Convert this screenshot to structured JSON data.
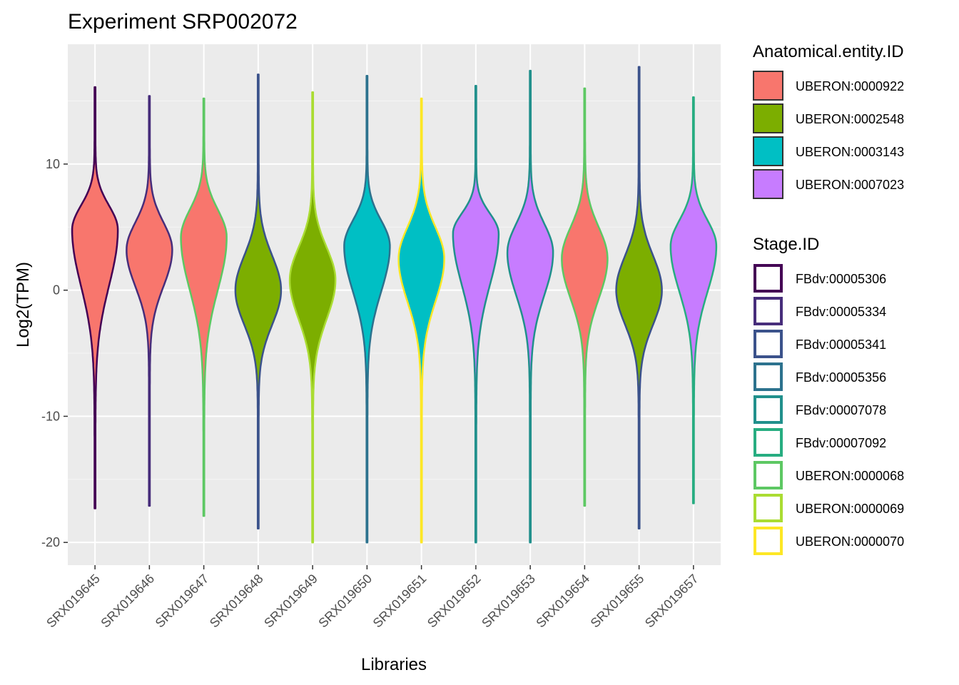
{
  "chart_data": {
    "type": "violin",
    "title": "Experiment SRP002072",
    "xlabel": "Libraries",
    "ylabel": "Log2(TPM)",
    "ylim": [
      -21.8,
      19.5
    ],
    "yticks": [
      -20,
      -10,
      0,
      10
    ],
    "ytick_labels": [
      "-20",
      "-10",
      "0",
      "10"
    ],
    "categories": [
      "SRX019645",
      "SRX019646",
      "SRX019647",
      "SRX019648",
      "SRX019649",
      "SRX019650",
      "SRX019651",
      "SRX019652",
      "SRX019653",
      "SRX019654",
      "SRX019655",
      "SRX019657"
    ],
    "violins": [
      {
        "library": "SRX019645",
        "anatomical": "UBERON:0000922",
        "stage": "FBdv:00005306",
        "min": -17.3,
        "max": 16.1,
        "mode": 4.8,
        "q_low": -5.0,
        "q_high": 9.0
      },
      {
        "library": "SRX019646",
        "anatomical": "UBERON:0000922",
        "stage": "FBdv:00005334",
        "min": -17.1,
        "max": 15.4,
        "mode": 3.2,
        "q_low": -3.2,
        "q_high": 8.0
      },
      {
        "library": "SRX019647",
        "anatomical": "UBERON:0000922",
        "stage": "UBERON:0000068",
        "min": -17.9,
        "max": 15.2,
        "mode": 4.2,
        "q_low": -5.0,
        "q_high": 9.0
      },
      {
        "library": "SRX019648",
        "anatomical": "UBERON:0002548",
        "stage": "FBdv:00005341",
        "min": -18.9,
        "max": 17.1,
        "mode": 0.0,
        "q_low": -6.0,
        "q_high": 6.0
      },
      {
        "library": "SRX019649",
        "anatomical": "UBERON:0002548",
        "stage": "UBERON:0000069",
        "min": -20.0,
        "max": 15.7,
        "mode": 0.8,
        "q_low": -6.0,
        "q_high": 6.5
      },
      {
        "library": "SRX019650",
        "anatomical": "UBERON:0003143",
        "stage": "FBdv:00005356",
        "min": -20.0,
        "max": 17.0,
        "mode": 3.5,
        "q_low": -4.5,
        "q_high": 8.0
      },
      {
        "library": "SRX019651",
        "anatomical": "UBERON:0003143",
        "stage": "UBERON:0000070",
        "min": -20.0,
        "max": 15.2,
        "mode": 2.5,
        "q_low": -5.0,
        "q_high": 8.0
      },
      {
        "library": "SRX019652",
        "anatomical": "UBERON:0007023",
        "stage": "FBdv:00007078",
        "min": -20.0,
        "max": 16.2,
        "mode": 4.5,
        "q_low": -4.5,
        "q_high": 8.0
      },
      {
        "library": "SRX019653",
        "anatomical": "UBERON:0007023",
        "stage": "FBdv:00007078",
        "min": -20.0,
        "max": 17.4,
        "mode": 3.0,
        "q_low": -4.5,
        "q_high": 8.0
      },
      {
        "library": "SRX019654",
        "anatomical": "UBERON:0000922",
        "stage": "UBERON:0000068",
        "min": -17.1,
        "max": 16.0,
        "mode": 2.5,
        "q_low": -4.5,
        "q_high": 8.0
      },
      {
        "library": "SRX019655",
        "anatomical": "UBERON:0002548",
        "stage": "FBdv:00005341",
        "min": -18.9,
        "max": 17.7,
        "mode": 0.0,
        "q_low": -6.0,
        "q_high": 6.0
      },
      {
        "library": "SRX019657",
        "anatomical": "UBERON:0007023",
        "stage": "FBdv:00007092",
        "min": -16.9,
        "max": 15.3,
        "mode": 3.5,
        "q_low": -4.5,
        "q_high": 8.0
      }
    ],
    "legends": [
      {
        "title": "Anatomical.entity.ID",
        "kind": "fill",
        "items": [
          {
            "label": "UBERON:0000922",
            "color": "#F8766D"
          },
          {
            "label": "UBERON:0002548",
            "color": "#7CAE00"
          },
          {
            "label": "UBERON:0003143",
            "color": "#00BFC4"
          },
          {
            "label": "UBERON:0007023",
            "color": "#C77CFF"
          }
        ]
      },
      {
        "title": "Stage.ID",
        "kind": "outline",
        "items": [
          {
            "label": "FBdv:00005306",
            "color": "#440154"
          },
          {
            "label": "FBdv:00005334",
            "color": "#472D7B"
          },
          {
            "label": "FBdv:00005341",
            "color": "#3B528B"
          },
          {
            "label": "FBdv:00005356",
            "color": "#2C728E"
          },
          {
            "label": "FBdv:00007078",
            "color": "#21908C"
          },
          {
            "label": "FBdv:00007092",
            "color": "#27AD81"
          },
          {
            "label": "UBERON:0000068",
            "color": "#5DC863"
          },
          {
            "label": "UBERON:0000069",
            "color": "#AADC32"
          },
          {
            "label": "UBERON:0000070",
            "color": "#FDE725"
          }
        ]
      }
    ],
    "legend_position": "right"
  },
  "colors": {
    "panel_background": "#EBEBEB",
    "grid_major": "#FFFFFF",
    "grid_minor": "#F5F5F5",
    "tick_text": "#4D4D4D"
  }
}
